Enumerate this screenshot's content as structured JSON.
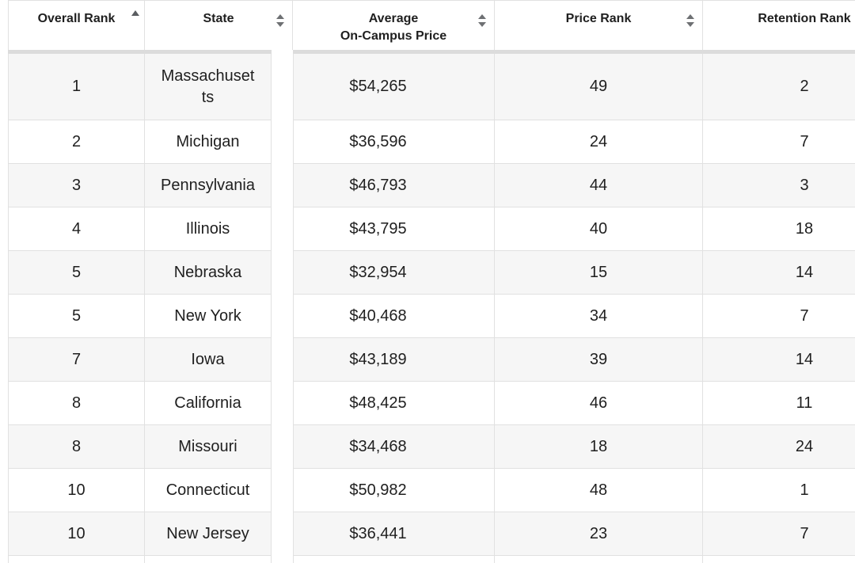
{
  "chart_data": {
    "type": "table",
    "title": "",
    "columns": [
      "Overall Rank",
      "State",
      "Average On-Campus Price",
      "Price Rank",
      "Retention Rank"
    ],
    "rows": [
      [
        "1",
        "Massachusetts",
        "$54,265",
        "49",
        "2"
      ],
      [
        "2",
        "Michigan",
        "$36,596",
        "24",
        "7"
      ],
      [
        "3",
        "Pennsylvania",
        "$46,793",
        "44",
        "3"
      ],
      [
        "4",
        "Illinois",
        "$43,795",
        "40",
        "18"
      ],
      [
        "5",
        "Nebraska",
        "$32,954",
        "15",
        "14"
      ],
      [
        "5",
        "New York",
        "$40,468",
        "34",
        "7"
      ],
      [
        "7",
        "Iowa",
        "$43,189",
        "39",
        "14"
      ],
      [
        "8",
        "California",
        "$48,425",
        "46",
        "11"
      ],
      [
        "8",
        "Missouri",
        "$34,468",
        "18",
        "24"
      ],
      [
        "10",
        "Connecticut",
        "$50,982",
        "48",
        "1"
      ],
      [
        "10",
        "New Jersey",
        "$36,441",
        "23",
        "7"
      ]
    ],
    "sorted_by": "Overall Rank",
    "sort_direction": "ascending",
    "layout": "striped sortable table; first two columns frozen with white gap before scrollable columns; Retention Rank column clipped at right edge; 12th row partially visible at bottom"
  },
  "table": {
    "columns": [
      {
        "key": "overall-rank",
        "label": "Overall Rank",
        "sort": "asc"
      },
      {
        "key": "state",
        "label": "State",
        "sort": "both"
      },
      {
        "key": "avg-price",
        "label": "Average\nOn-Campus Price",
        "sort": "both"
      },
      {
        "key": "price-rank",
        "label": "Price Rank",
        "sort": "both"
      },
      {
        "key": "retention-rank",
        "label": "Retention Rank",
        "sort": "both"
      }
    ],
    "rows": [
      [
        "1",
        "Massachusetts",
        "$54,265",
        "49",
        "2"
      ],
      [
        "2",
        "Michigan",
        "$36,596",
        "24",
        "7"
      ],
      [
        "3",
        "Pennsylvania",
        "$46,793",
        "44",
        "3"
      ],
      [
        "4",
        "Illinois",
        "$43,795",
        "40",
        "18"
      ],
      [
        "5",
        "Nebraska",
        "$32,954",
        "15",
        "14"
      ],
      [
        "5",
        "New York",
        "$40,468",
        "34",
        "7"
      ],
      [
        "7",
        "Iowa",
        "$43,189",
        "39",
        "14"
      ],
      [
        "8",
        "California",
        "$48,425",
        "46",
        "11"
      ],
      [
        "8",
        "Missouri",
        "$34,468",
        "18",
        "24"
      ],
      [
        "10",
        "Connecticut",
        "$50,982",
        "48",
        "1"
      ],
      [
        "10",
        "New Jersey",
        "$36,441",
        "23",
        "7"
      ]
    ]
  },
  "colors": {
    "row_stripe": "#f6f6f6",
    "row_plain": "#ffffff",
    "border": "#e1e1e1",
    "header_shadow_band": "#dcdcdc",
    "text": "#1f1f1f",
    "sort_active_arrow": "#5a5d61",
    "sort_inactive_arrow": "#6e7073"
  }
}
